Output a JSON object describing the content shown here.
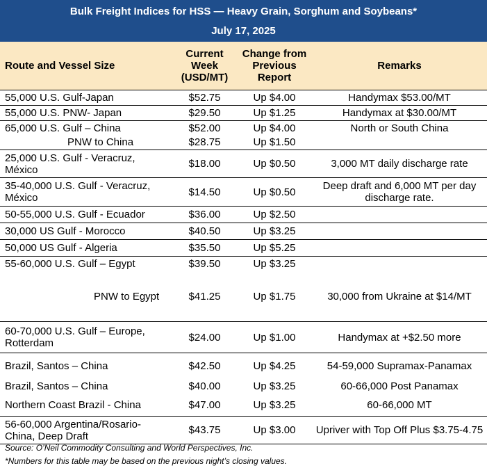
{
  "title": {
    "line1": "Bulk Freight Indices for HSS — Heavy Grain, Sorghum and Soybeans*",
    "line2": "July 17, 2025"
  },
  "headers": {
    "route": "Route and Vessel Size",
    "current": "Current Week (USD/MT)",
    "change": "Change from Previous Report",
    "remarks": "Remarks"
  },
  "rows": [
    {
      "route": "55,000 U.S. Gulf-Japan",
      "current": "$52.75",
      "change": "Up $4.00",
      "remarks": "Handymax  $53.00/MT"
    },
    {
      "route": "55,000 U.S. PNW- Japan",
      "current": "$29.50",
      "change": "Up $1.25",
      "remarks": "Handymax at $30.00/MT"
    },
    {
      "route": "65,000 U.S. Gulf – China",
      "current": "$52.00",
      "change": "Up $4.00",
      "remarks": "North or South China"
    },
    {
      "route": "PNW to China",
      "current": "$28.75",
      "change": "Up $1.50",
      "remarks": ""
    },
    {
      "route": "25,000 U.S. Gulf - Veracruz, México",
      "current": "$18.00",
      "change": "Up $0.50",
      "remarks": "3,000 MT daily discharge rate"
    },
    {
      "route": "35-40,000 U.S. Gulf - Veracruz, México",
      "current": "$14.50",
      "change": "Up $0.50",
      "remarks": "Deep draft and 6,000 MT per day discharge rate."
    },
    {
      "route": "50-55,000 U.S. Gulf - Ecuador",
      "current": "$36.00",
      "change": "Up $2.50",
      "remarks": ""
    },
    {
      "route": "30,000 US Gulf - Morocco",
      "current": "$40.50",
      "change": "Up $3.25",
      "remarks": ""
    },
    {
      "route": "50,000 US Gulf - Algeria",
      "current": "$35.50",
      "change": "Up $5.25",
      "remarks": ""
    },
    {
      "route": "55-60,000 U.S. Gulf – Egypt",
      "current": "$39.50",
      "change": "Up $3.25",
      "remarks": ""
    },
    {
      "route": "PNW to Egypt",
      "current": "$41.25",
      "change": "Up $1.75",
      "remarks": "30,000 from Ukraine at $14/MT"
    },
    {
      "route": "60-70,000 U.S. Gulf – Europe, Rotterdam",
      "current": "$24.00",
      "change": "Up $1.00",
      "remarks": "Handymax at +$2.50 more"
    },
    {
      "route": "Brazil, Santos – China",
      "current": "$42.50",
      "change": "Up $4.25",
      "remarks": "54-59,000 Supramax-Panamax"
    },
    {
      "route": "Brazil, Santos – China",
      "current": "$40.00",
      "change": "Up $3.25",
      "remarks": "60-66,000  Post Panamax"
    },
    {
      "route": "Northern Coast Brazil - China",
      "current": "$47.00",
      "change": "Up $3.25",
      "remarks": "60-66,000 MT"
    },
    {
      "route": "56-60,000 Argentina/Rosario-China, Deep Draft",
      "current": "$43.75",
      "change": "Up $3.00",
      "remarks": "Upriver with Top Off Plus $3.75-4.75"
    }
  ],
  "footer": {
    "source": "Source: O’Neil Commodity Consulting and World Perspectives, Inc.",
    "note": "*Numbers for this table may be based on the previous night’s closing values."
  },
  "colors": {
    "title_bg": "#1f4e8c",
    "header_bg": "#fbe8c3"
  }
}
